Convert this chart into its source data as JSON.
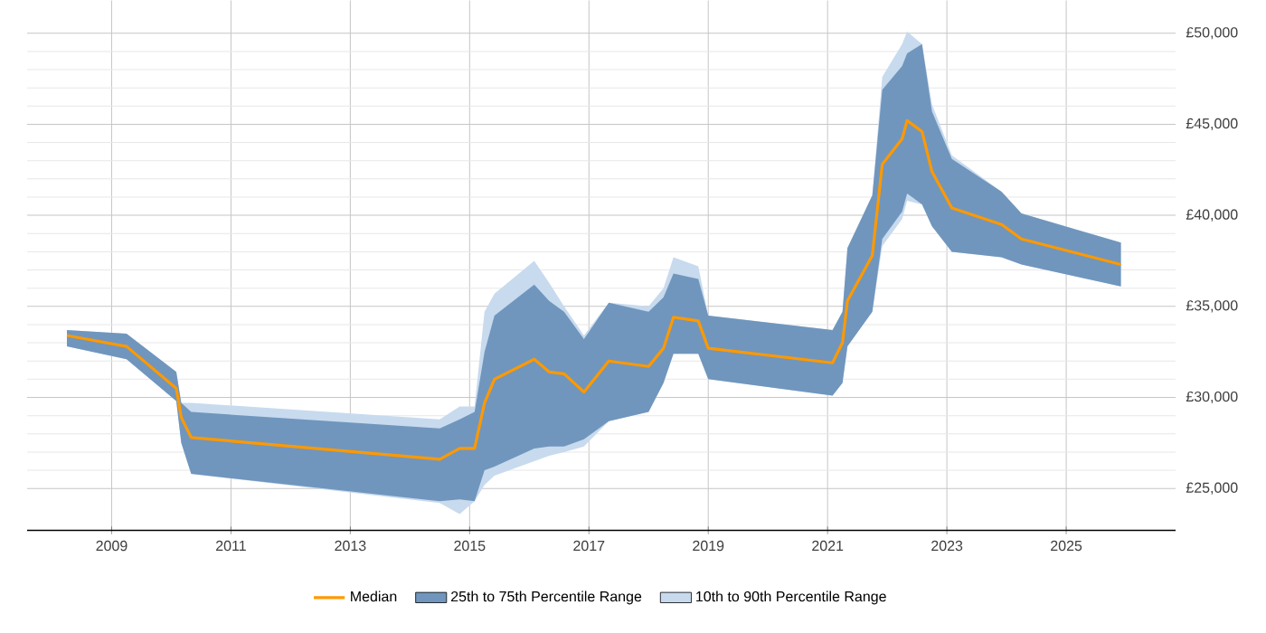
{
  "chart_data": {
    "type": "line",
    "x": [
      "2008-04",
      "2009-04",
      "2010-02",
      "2010-03",
      "2010-05",
      "2014-07",
      "2014-11",
      "2015-02",
      "2015-04",
      "2015-06",
      "2016-02",
      "2016-05",
      "2016-08",
      "2016-12",
      "2017-05",
      "2018-01",
      "2018-04",
      "2018-06",
      "2018-11",
      "2019-01",
      "2021-02",
      "2021-04",
      "2021-05",
      "2021-10",
      "2021-12",
      "2022-04",
      "2022-05",
      "2022-08",
      "2022-10",
      "2023-02",
      "2023-12",
      "2024-04",
      "2025-12"
    ],
    "series": [
      {
        "name": "Median",
        "color": "#ff9900",
        "values": [
          33400,
          32800,
          30500,
          28900,
          27800,
          26600,
          27200,
          27200,
          29700,
          31000,
          32100,
          31400,
          31300,
          30300,
          32000,
          31700,
          32700,
          34400,
          34200,
          32700,
          31900,
          33000,
          35300,
          37800,
          42800,
          44200,
          45200,
          44600,
          42400,
          40400,
          39500,
          38700,
          37300
        ]
      },
      {
        "name": "25th to 75th Percentile Range",
        "type": "area",
        "color": "#7096bd",
        "values": [
          null,
          null,
          null,
          null,
          null,
          null,
          null,
          null,
          null,
          null,
          null,
          null,
          null,
          null,
          null,
          null,
          null,
          null,
          null,
          null,
          null,
          null,
          null,
          null,
          null,
          null,
          null,
          null,
          null,
          null,
          null,
          null,
          null
        ],
        "lower": [
          32800,
          32100,
          29800,
          27500,
          25800,
          24300,
          24400,
          24300,
          26000,
          26200,
          27200,
          27300,
          27300,
          27700,
          28700,
          29200,
          30800,
          32400,
          32400,
          31000,
          30100,
          30800,
          32800,
          34700,
          38700,
          40200,
          41200,
          40600,
          39400,
          38000,
          37700,
          37300,
          36100
        ],
        "upper": [
          33700,
          33500,
          31400,
          29700,
          29200,
          28300,
          28800,
          29200,
          32500,
          34500,
          36200,
          35300,
          34700,
          33200,
          35200,
          34700,
          35500,
          36800,
          36500,
          34500,
          33700,
          34700,
          38200,
          41100,
          46900,
          48200,
          48900,
          49400,
          45700,
          43100,
          41300,
          40100,
          38500
        ]
      },
      {
        "name": "10th to 90th Percentile Range",
        "type": "area",
        "color": "#c8daee",
        "values": [
          null,
          null,
          null,
          null,
          null,
          null,
          null,
          null,
          null,
          null,
          null,
          null,
          null,
          null,
          null,
          null,
          null,
          null,
          null,
          null,
          null,
          null,
          null,
          null,
          null,
          null,
          null,
          null,
          null,
          null,
          null,
          null,
          null
        ],
        "lower": [
          32800,
          32100,
          29800,
          27500,
          25800,
          24200,
          23600,
          24300,
          25200,
          25700,
          26500,
          26800,
          27000,
          27300,
          28700,
          29200,
          30800,
          32400,
          32400,
          31000,
          30100,
          30800,
          32800,
          34700,
          38300,
          39800,
          40800,
          40600,
          39400,
          38000,
          37700,
          37300,
          36100
        ],
        "upper": [
          33700,
          33500,
          31400,
          29700,
          29700,
          28800,
          29500,
          29500,
          34700,
          35700,
          37500,
          36300,
          35000,
          33400,
          35200,
          35000,
          36000,
          37700,
          37200,
          34500,
          33700,
          34700,
          38200,
          41100,
          47600,
          49400,
          50100,
          49400,
          46100,
          43300,
          41300,
          40100,
          38500
        ]
      }
    ],
    "xlim": [
      "2007-08",
      "2026-11"
    ],
    "xticks": [
      "2009",
      "2011",
      "2013",
      "2015",
      "2017",
      "2019",
      "2021",
      "2023",
      "2025"
    ],
    "ylim": [
      22700,
      51800
    ],
    "yticks": [
      {
        "value": 25000,
        "label": "£25,000"
      },
      {
        "value": 30000,
        "label": "£30,000"
      },
      {
        "value": 35000,
        "label": "£35,000"
      },
      {
        "value": 40000,
        "label": "£40,000"
      },
      {
        "value": 45000,
        "label": "£45,000"
      },
      {
        "value": 50000,
        "label": "£50,000"
      }
    ],
    "grid": true,
    "legend": "bottom"
  }
}
